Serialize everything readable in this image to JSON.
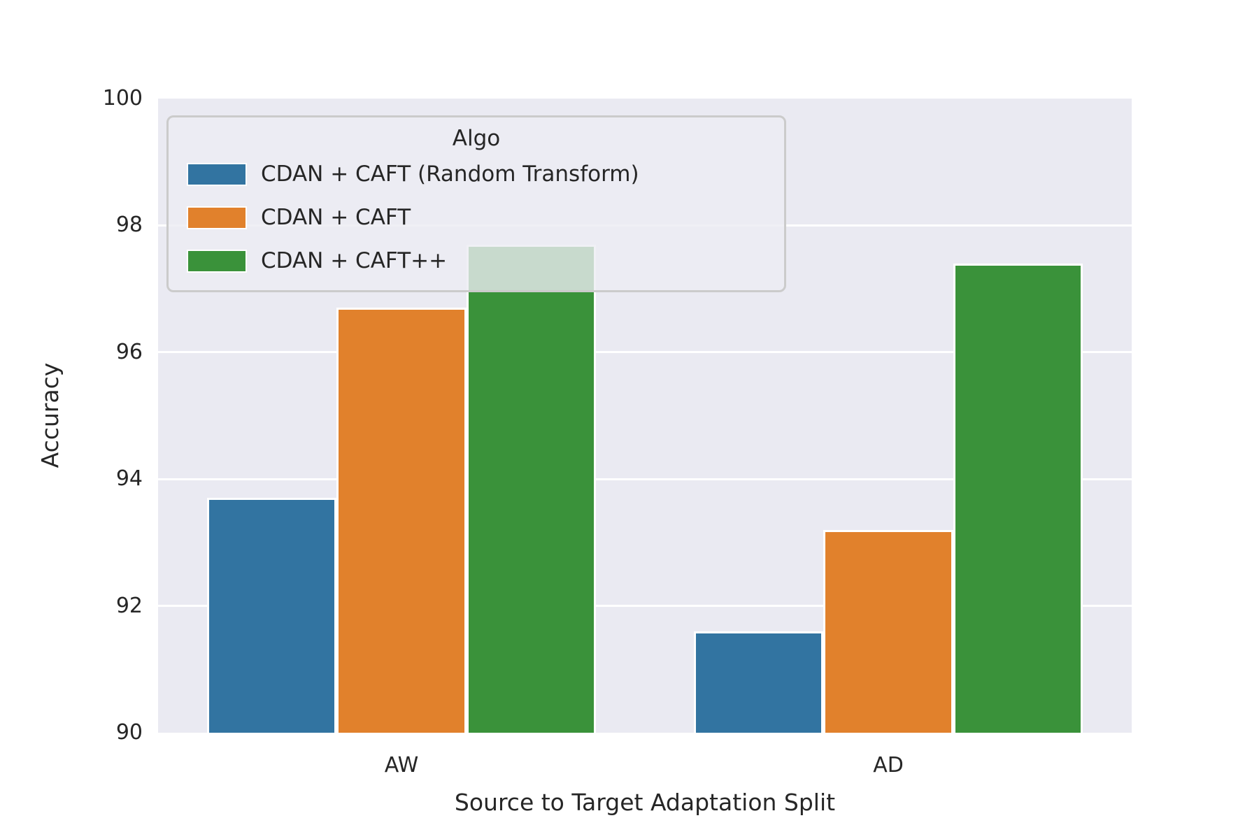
{
  "chart_data": {
    "type": "bar",
    "title": "",
    "xlabel": "Source to Target Adaptation Split",
    "ylabel": "Accuracy",
    "categories": [
      "AW",
      "AD"
    ],
    "series": [
      {
        "name": "CDAN + CAFT (Random Transform)",
        "color": "#3274A1",
        "values": [
          93.7,
          91.6
        ]
      },
      {
        "name": "CDAN + CAFT",
        "color": "#E1812C",
        "values": [
          96.7,
          93.2
        ]
      },
      {
        "name": "CDAN + CAFT++",
        "color": "#3A923A",
        "values": [
          97.7,
          97.4
        ]
      }
    ],
    "ylim": [
      90,
      100
    ],
    "yticks": [
      90,
      92,
      94,
      96,
      98,
      100
    ],
    "ytick_labels": [
      "90",
      "92",
      "94",
      "96",
      "98",
      "100"
    ],
    "gridline_ticks": [
      92,
      94,
      96,
      98
    ],
    "grid": true,
    "legend_title": "Algo",
    "legend_position": "upper left",
    "plot_bg_color": "#EAEAF2",
    "grid_color": "#FFFFFF",
    "bar_edge_color": "#FFFFFF",
    "text_color": "#262626",
    "figure_bg_color": "#FFFFFF"
  }
}
